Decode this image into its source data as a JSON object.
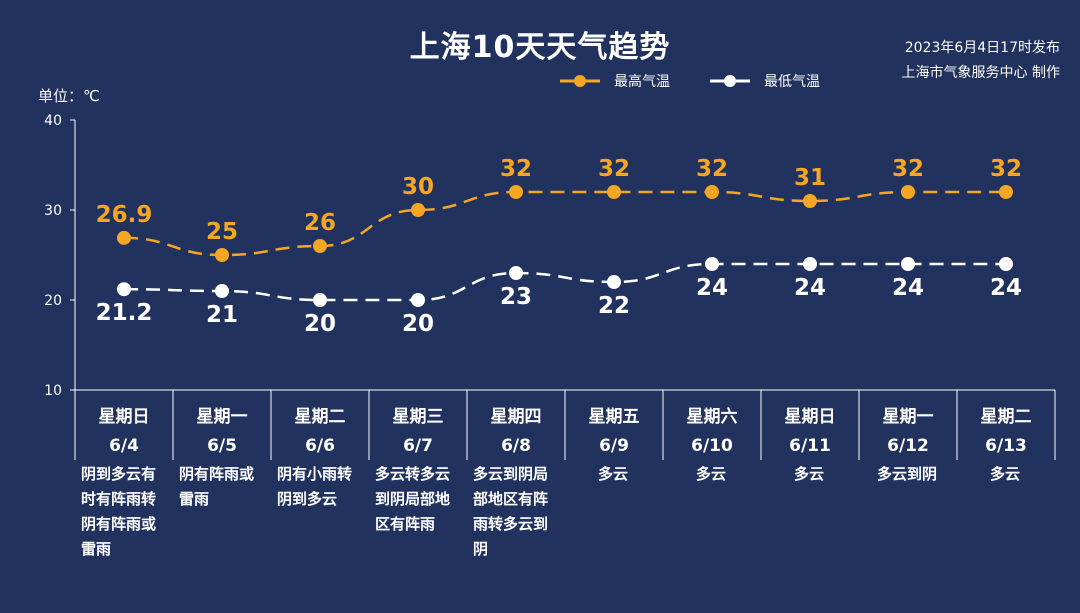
{
  "header": {
    "title": "上海10天天气趋势",
    "publish_line1": "2023年6月4日17时发布",
    "publish_line2": "上海市气象服务中心 制作",
    "unit_label": "单位：℃"
  },
  "colors": {
    "background": "#22325e",
    "high": "#f5a623",
    "low": "#ffffff",
    "axis": "#ffffff"
  },
  "chart_data": {
    "type": "line",
    "title": "上海10天天气趋势",
    "ylim": [
      10,
      40
    ],
    "yticks": [
      10,
      20,
      30,
      40
    ],
    "ylabel": "单位：℃",
    "legend_position": "top-right",
    "grid": false,
    "categories": [
      {
        "weekday": "星期日",
        "date": "6/4"
      },
      {
        "weekday": "星期一",
        "date": "6/5"
      },
      {
        "weekday": "星期二",
        "date": "6/6"
      },
      {
        "weekday": "星期三",
        "date": "6/7"
      },
      {
        "weekday": "星期四",
        "date": "6/8"
      },
      {
        "weekday": "星期五",
        "date": "6/9"
      },
      {
        "weekday": "星期六",
        "date": "6/10"
      },
      {
        "weekday": "星期日",
        "date": "6/11"
      },
      {
        "weekday": "星期一",
        "date": "6/12"
      },
      {
        "weekday": "星期二",
        "date": "6/13"
      }
    ],
    "series": [
      {
        "name": "最高气温",
        "values": [
          26.9,
          25,
          26,
          30,
          32,
          32,
          32,
          31,
          32,
          32
        ],
        "labels": [
          "26.9",
          "25",
          "26",
          "30",
          "32",
          "32",
          "32",
          "31",
          "32",
          "32"
        ]
      },
      {
        "name": "最低气温",
        "values": [
          21.2,
          21,
          20,
          20,
          23,
          22,
          24,
          24,
          24,
          24
        ],
        "labels": [
          "21.2",
          "21",
          "20",
          "20",
          "23",
          "22",
          "24",
          "24",
          "24",
          "24"
        ]
      }
    ],
    "weather": [
      [
        "阴到多云有",
        "时有阵雨转",
        "阴有阵雨或",
        "雷雨"
      ],
      [
        "阴有阵雨或",
        "雷雨"
      ],
      [
        "阴有小雨转",
        "阴到多云"
      ],
      [
        "多云转多云",
        "到阴局部地",
        "区有阵雨"
      ],
      [
        "多云到阴局",
        "部地区有阵",
        "雨转多云到",
        "阴"
      ],
      [
        "多云"
      ],
      [
        "多云"
      ],
      [
        "多云"
      ],
      [
        "多云到阴"
      ],
      [
        "多云"
      ]
    ]
  }
}
